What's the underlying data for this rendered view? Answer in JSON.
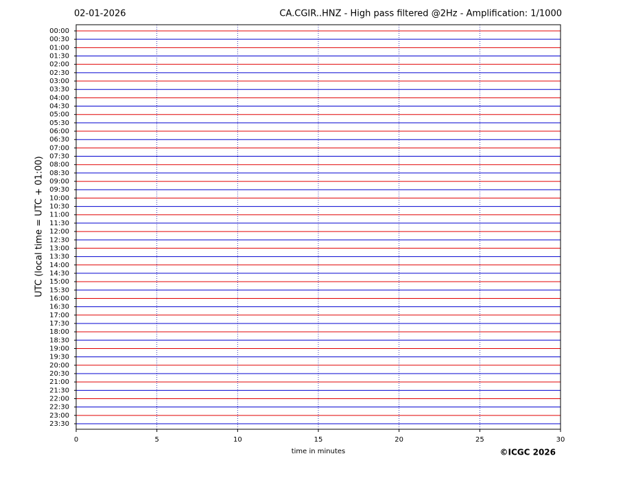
{
  "chart_data": {
    "type": "seismogram",
    "title_left": "02-01-2026",
    "title": "CA.CGIR..HNZ - High pass filtered @2Hz - Amplification: 1/1000",
    "ylabel": "UTC (local time = UTC + 01:00)",
    "xlabel": "time in minutes",
    "copyright": "©ICGC 2026",
    "categories": [
      "00:00",
      "00:30",
      "01:00",
      "01:30",
      "02:00",
      "02:30",
      "03:00",
      "03:30",
      "04:00",
      "04:30",
      "05:00",
      "05:30",
      "06:00",
      "06:30",
      "07:00",
      "07:30",
      "08:00",
      "08:30",
      "09:00",
      "09:30",
      "10:00",
      "10:30",
      "11:00",
      "11:30",
      "12:00",
      "12:30",
      "13:00",
      "13:30",
      "14:00",
      "14:30",
      "15:00",
      "15:30",
      "16:00",
      "16:30",
      "17:00",
      "17:30",
      "18:00",
      "18:30",
      "19:00",
      "19:30",
      "20:00",
      "20:30",
      "21:00",
      "21:30",
      "22:00",
      "22:30",
      "23:00",
      "23:30"
    ],
    "colors": [
      "#e00000",
      "#0000d0"
    ],
    "xlim": [
      0,
      30
    ],
    "xticks": [
      0,
      5,
      10,
      15,
      20,
      25,
      30
    ],
    "grid": true
  }
}
